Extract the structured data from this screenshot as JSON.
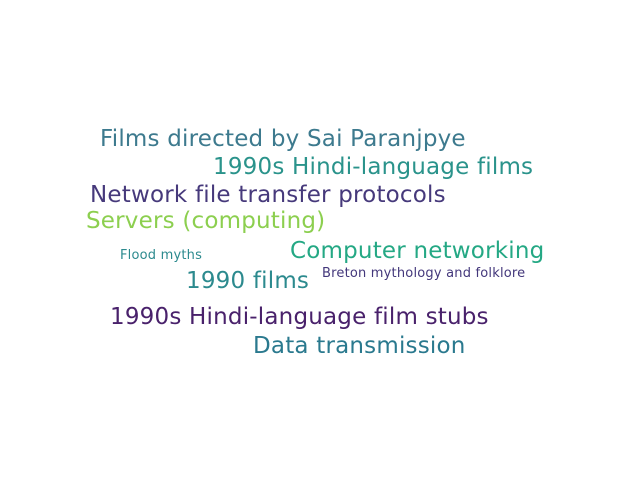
{
  "words": [
    {
      "text": "Films directed by Sai Paranjpye",
      "color": "#3d7a8e"
    },
    {
      "text": "1990s Hindi-language films",
      "color": "#2a938b"
    },
    {
      "text": "Network file transfer protocols",
      "color": "#46397b"
    },
    {
      "text": "Servers (computing)",
      "color": "#8ccf4f"
    },
    {
      "text": "Computer networking",
      "color": "#24a884"
    },
    {
      "text": "Flood myths",
      "color": "#2c8a8e"
    },
    {
      "text": "Breton mythology and folklore",
      "color": "#43377b"
    },
    {
      "text": "1990 films",
      "color": "#2c8a8e"
    },
    {
      "text": "1990s Hindi-language film stubs",
      "color": "#49216b"
    },
    {
      "text": "Data transmission",
      "color": "#2a798e"
    }
  ]
}
